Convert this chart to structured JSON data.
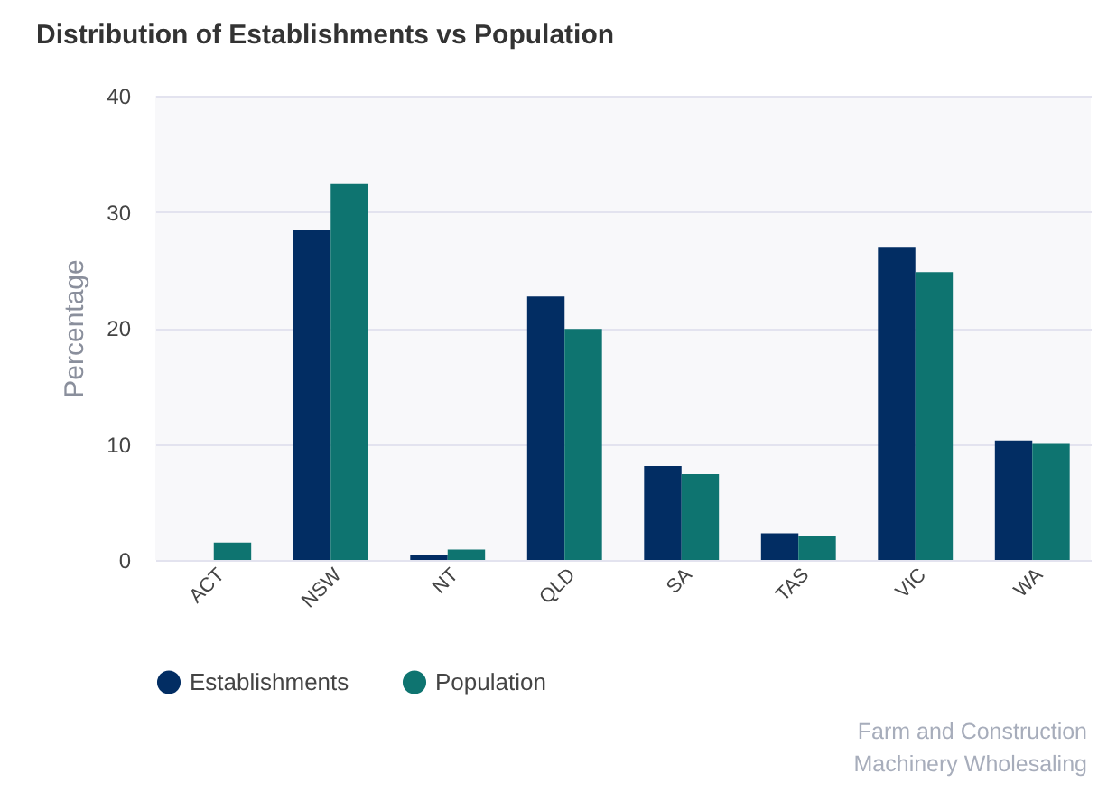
{
  "chart_data": {
    "type": "bar",
    "title": "Distribution of Establishments vs Population",
    "ylabel": "Percentage",
    "categories": [
      "ACT",
      "NSW",
      "NT",
      "QLD",
      "SA",
      "TAS",
      "VIC",
      "WA"
    ],
    "series": [
      {
        "name": "Establishments",
        "color": "#022d63",
        "values": [
          0,
          28.4,
          0.4,
          22.7,
          8.1,
          2.3,
          26.9,
          10.3
        ]
      },
      {
        "name": "Population",
        "color": "#0e7470",
        "values": [
          1.5,
          32.4,
          0.9,
          19.9,
          7.4,
          2.1,
          24.8,
          10.0
        ]
      }
    ],
    "ylim": [
      0,
      40
    ],
    "yticks": [
      0,
      10,
      20,
      30,
      40
    ],
    "grid": "y",
    "legend": "bottom",
    "annotations": [
      "Farm and Construction Machinery Wholesaling"
    ]
  }
}
